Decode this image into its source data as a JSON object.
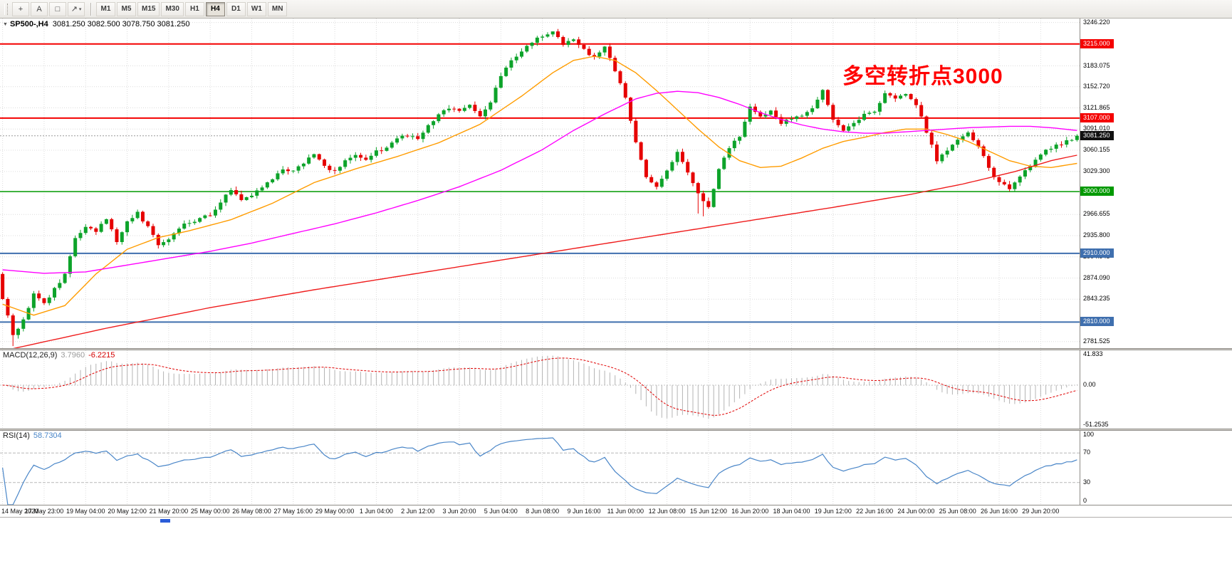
{
  "toolbar": {
    "icon_buttons": [
      {
        "name": "crosshair-icon",
        "glyph": "+"
      },
      {
        "name": "text-label-icon",
        "glyph": "A"
      },
      {
        "name": "text-frame-icon",
        "glyph": "□"
      },
      {
        "name": "line-studies-icon",
        "glyph": "↗",
        "caret": "▾"
      }
    ],
    "timeframes": [
      "M1",
      "M5",
      "M15",
      "M30",
      "H1",
      "H4",
      "D1",
      "W1",
      "MN"
    ],
    "active_timeframe": "H4"
  },
  "main_chart": {
    "type": "candlestick",
    "title": {
      "symbol": "SP500-,H4",
      "ohlc": "3081.250 3082.500 3078.750 3081.250"
    },
    "annotation": {
      "text": "多空转折点3000",
      "color": "#ff0000"
    },
    "price_range": {
      "top": 3252,
      "bottom": 2772
    },
    "y_ticks": [
      {
        "v": 3246.22,
        "label": "3246.220"
      },
      {
        "v": 3183.075,
        "label": "3183.075"
      },
      {
        "v": 3152.72,
        "label": "3152.720"
      },
      {
        "v": 3121.865,
        "label": "3121.865"
      },
      {
        "v": 3091.01,
        "label": "3091.010"
      },
      {
        "v": 3060.155,
        "label": "3060.155"
      },
      {
        "v": 3029.3,
        "label": "3029.300"
      },
      {
        "v": 2966.655,
        "label": "2966.655"
      },
      {
        "v": 2935.8,
        "label": "2935.800"
      },
      {
        "v": 2904.945,
        "label": "2904.945"
      },
      {
        "v": 2874.09,
        "label": "2874.090"
      },
      {
        "v": 2843.235,
        "label": "2843.235"
      },
      {
        "v": 2781.525,
        "label": "2781.525"
      }
    ],
    "hlines": [
      {
        "v": 3215,
        "label": "3215.000",
        "color": "#f40000",
        "width": 2
      },
      {
        "v": 3107,
        "label": "3107.000",
        "color": "#f40000",
        "width": 2
      },
      {
        "v": 3000,
        "label": "3000.000",
        "color": "#009900",
        "width": 1.5
      },
      {
        "v": 2910,
        "label": "2910.000",
        "color": "#3f6fae",
        "width": 2
      },
      {
        "v": 2810,
        "label": "2810.000",
        "color": "#3f6fae",
        "width": 2
      }
    ],
    "current_price": {
      "v": 3081.25,
      "label": "3081.250"
    },
    "candle_count": 208,
    "open_first": 2880,
    "close_waypoints": [
      [
        0,
        2845
      ],
      [
        2,
        2792
      ],
      [
        4,
        2812
      ],
      [
        6,
        2850
      ],
      [
        8,
        2836
      ],
      [
        10,
        2858
      ],
      [
        12,
        2878
      ],
      [
        14,
        2934
      ],
      [
        16,
        2948
      ],
      [
        18,
        2940
      ],
      [
        20,
        2962
      ],
      [
        22,
        2926
      ],
      [
        24,
        2956
      ],
      [
        26,
        2970
      ],
      [
        28,
        2948
      ],
      [
        30,
        2922
      ],
      [
        32,
        2930
      ],
      [
        34,
        2948
      ],
      [
        36,
        2956
      ],
      [
        38,
        2960
      ],
      [
        40,
        2966
      ],
      [
        42,
        2986
      ],
      [
        44,
        3004
      ],
      [
        46,
        2988
      ],
      [
        48,
        2994
      ],
      [
        50,
        3008
      ],
      [
        52,
        3016
      ],
      [
        54,
        3034
      ],
      [
        56,
        3028
      ],
      [
        58,
        3042
      ],
      [
        60,
        3054
      ],
      [
        62,
        3036
      ],
      [
        64,
        3030
      ],
      [
        66,
        3044
      ],
      [
        68,
        3052
      ],
      [
        70,
        3048
      ],
      [
        72,
        3058
      ],
      [
        74,
        3064
      ],
      [
        76,
        3076
      ],
      [
        78,
        3082
      ],
      [
        80,
        3078
      ],
      [
        82,
        3096
      ],
      [
        84,
        3112
      ],
      [
        86,
        3122
      ],
      [
        88,
        3118
      ],
      [
        90,
        3126
      ],
      [
        92,
        3108
      ],
      [
        94,
        3132
      ],
      [
        96,
        3166
      ],
      [
        98,
        3192
      ],
      [
        100,
        3202
      ],
      [
        102,
        3218
      ],
      [
        104,
        3226
      ],
      [
        106,
        3232
      ],
      [
        108,
        3214
      ],
      [
        110,
        3224
      ],
      [
        112,
        3206
      ],
      [
        114,
        3196
      ],
      [
        116,
        3212
      ],
      [
        118,
        3176
      ],
      [
        120,
        3138
      ],
      [
        122,
        3072
      ],
      [
        124,
        3022
      ],
      [
        126,
        3006
      ],
      [
        128,
        3032
      ],
      [
        130,
        3056
      ],
      [
        132,
        3028
      ],
      [
        134,
        2996
      ],
      [
        136,
        2978
      ],
      [
        138,
        3032
      ],
      [
        140,
        3062
      ],
      [
        142,
        3082
      ],
      [
        144,
        3126
      ],
      [
        146,
        3110
      ],
      [
        148,
        3116
      ],
      [
        150,
        3098
      ],
      [
        152,
        3108
      ],
      [
        154,
        3112
      ],
      [
        156,
        3122
      ],
      [
        158,
        3148
      ],
      [
        160,
        3104
      ],
      [
        162,
        3088
      ],
      [
        164,
        3098
      ],
      [
        166,
        3112
      ],
      [
        168,
        3118
      ],
      [
        170,
        3144
      ],
      [
        172,
        3138
      ],
      [
        174,
        3142
      ],
      [
        176,
        3128
      ],
      [
        178,
        3088
      ],
      [
        180,
        3046
      ],
      [
        182,
        3062
      ],
      [
        184,
        3076
      ],
      [
        186,
        3084
      ],
      [
        188,
        3068
      ],
      [
        190,
        3034
      ],
      [
        192,
        3012
      ],
      [
        194,
        3006
      ],
      [
        196,
        3024
      ],
      [
        198,
        3038
      ],
      [
        200,
        3056
      ],
      [
        202,
        3062
      ],
      [
        204,
        3070
      ],
      [
        206,
        3076
      ],
      [
        207,
        3081.25
      ]
    ],
    "wick_overrides": [
      {
        "i": 2,
        "low": 2775
      },
      {
        "i": 106,
        "high": 3233
      },
      {
        "i": 134,
        "low": 2968
      },
      {
        "i": 135,
        "low": 2964
      }
    ],
    "ma_lines": [
      {
        "name": "ma-fast-orange",
        "color": "#ff9c00",
        "width": 1.4,
        "points": [
          [
            0,
            2836
          ],
          [
            6,
            2820
          ],
          [
            12,
            2834
          ],
          [
            18,
            2880
          ],
          [
            24,
            2916
          ],
          [
            30,
            2933
          ],
          [
            36,
            2943
          ],
          [
            44,
            2959
          ],
          [
            52,
            2983
          ],
          [
            60,
            3013
          ],
          [
            68,
            3033
          ],
          [
            76,
            3051
          ],
          [
            84,
            3071
          ],
          [
            92,
            3098
          ],
          [
            100,
            3139
          ],
          [
            106,
            3173
          ],
          [
            110,
            3191
          ],
          [
            114,
            3197
          ],
          [
            118,
            3191
          ],
          [
            122,
            3173
          ],
          [
            126,
            3147
          ],
          [
            130,
            3119
          ],
          [
            134,
            3091
          ],
          [
            138,
            3065
          ],
          [
            142,
            3045
          ],
          [
            146,
            3035
          ],
          [
            150,
            3037
          ],
          [
            154,
            3049
          ],
          [
            158,
            3063
          ],
          [
            162,
            3073
          ],
          [
            166,
            3079
          ],
          [
            170,
            3086
          ],
          [
            174,
            3091
          ],
          [
            178,
            3091
          ],
          [
            182,
            3083
          ],
          [
            186,
            3073
          ],
          [
            190,
            3059
          ],
          [
            194,
            3045
          ],
          [
            198,
            3037
          ],
          [
            202,
            3035
          ],
          [
            207,
            3041
          ]
        ]
      },
      {
        "name": "ma-mid-magenta",
        "color": "#ff00ff",
        "width": 1.4,
        "points": [
          [
            0,
            2886
          ],
          [
            8,
            2881
          ],
          [
            16,
            2883
          ],
          [
            24,
            2893
          ],
          [
            32,
            2903
          ],
          [
            40,
            2913
          ],
          [
            48,
            2925
          ],
          [
            56,
            2939
          ],
          [
            64,
            2953
          ],
          [
            72,
            2969
          ],
          [
            80,
            2987
          ],
          [
            88,
            3007
          ],
          [
            96,
            3031
          ],
          [
            104,
            3061
          ],
          [
            110,
            3089
          ],
          [
            116,
            3113
          ],
          [
            122,
            3135
          ],
          [
            126,
            3143
          ],
          [
            130,
            3146
          ],
          [
            134,
            3144
          ],
          [
            138,
            3137
          ],
          [
            142,
            3127
          ],
          [
            146,
            3115
          ],
          [
            150,
            3105
          ],
          [
            154,
            3097
          ],
          [
            158,
            3091
          ],
          [
            162,
            3087
          ],
          [
            166,
            3085
          ],
          [
            170,
            3085
          ],
          [
            174,
            3087
          ],
          [
            178,
            3089
          ],
          [
            182,
            3091
          ],
          [
            186,
            3093
          ],
          [
            190,
            3094
          ],
          [
            194,
            3095
          ],
          [
            198,
            3095
          ],
          [
            202,
            3093
          ],
          [
            207,
            3089
          ]
        ]
      },
      {
        "name": "ma-slow-red",
        "color": "#ef1c1c",
        "width": 1.4,
        "points": [
          [
            0,
            2768
          ],
          [
            20,
            2801
          ],
          [
            40,
            2831
          ],
          [
            60,
            2857
          ],
          [
            80,
            2881
          ],
          [
            100,
            2905
          ],
          [
            120,
            2929
          ],
          [
            140,
            2953
          ],
          [
            160,
            2977
          ],
          [
            175,
            2996
          ],
          [
            185,
            3011
          ],
          [
            195,
            3029
          ],
          [
            202,
            3045
          ],
          [
            207,
            3053
          ]
        ]
      }
    ],
    "colors": {
      "up": "#0da32a",
      "down": "#e60000",
      "grid": "#dcdcdc"
    }
  },
  "macd_panel": {
    "label": "MACD(12,26,9)",
    "value_main": "3.7960",
    "value_signal": "-6.2215",
    "y_ticks": [
      {
        "v": 41.833,
        "label": "41.833"
      },
      {
        "v": 0,
        "label": "0.00"
      },
      {
        "v": -51.2535,
        "label": "-51.2535"
      }
    ],
    "range": {
      "top": 45,
      "bottom": -56
    },
    "histogram_color": "#b4b4b4",
    "signal_color": "#e00000"
  },
  "rsi_panel": {
    "label": "RSI(14)",
    "value": "58.7304",
    "levels": [
      {
        "v": 70,
        "label": "70"
      },
      {
        "v": 30,
        "label": "30"
      }
    ],
    "y_ticks": [
      {
        "v": 100,
        "label": "100"
      },
      {
        "v": 70,
        "label": "70"
      },
      {
        "v": 30,
        "label": "30"
      },
      {
        "v": 0,
        "label": "0"
      }
    ],
    "range": {
      "top": 100,
      "bottom": 0
    },
    "line_color": "#4a86c8"
  },
  "time_axis": {
    "candles_per_label": 8,
    "labels": [
      "14 May 2020",
      "17 May 23:00",
      "19 May 04:00",
      "20 May 12:00",
      "21 May 20:00",
      "25 May 00:00",
      "26 May 08:00",
      "27 May 16:00",
      "29 May 00:00",
      "1 Jun 04:00",
      "2 Jun 12:00",
      "3 Jun 20:00",
      "5 Jun 04:00",
      "8 Jun 08:00",
      "9 Jun 16:00",
      "11 Jun 00:00",
      "12 Jun 08:00",
      "15 Jun 12:00",
      "16 Jun 20:00",
      "18 Jun 04:00",
      "19 Jun 12:00",
      "22 Jun 16:00",
      "24 Jun 00:00",
      "25 Jun 08:00",
      "26 Jun 16:00",
      "29 Jun 20:00"
    ]
  }
}
